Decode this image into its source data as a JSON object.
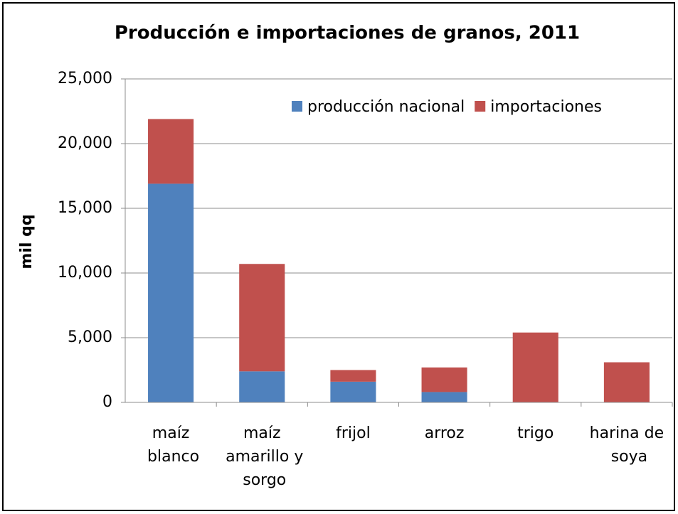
{
  "chart_data": {
    "type": "stacked_bar",
    "title": "Producción e importaciones de granos, 2011",
    "y_label": "mil qq",
    "categories": [
      "maíz blanco",
      "maíz amarillo y sorgo",
      "frijol",
      "arroz",
      "trigo",
      "harina de soya"
    ],
    "series": [
      {
        "name": "producción nacional",
        "color": "#4f81bd",
        "values": [
          16900,
          2400,
          1600,
          800,
          0,
          0
        ]
      },
      {
        "name": "importaciones",
        "color": "#c0504d",
        "values": [
          5000,
          8300,
          900,
          1900,
          5400,
          3100
        ]
      }
    ],
    "ylim": [
      0,
      25000
    ],
    "yticks": [
      0,
      {
        "value": 5000,
        "label": "5,000"
      },
      {
        "value": 10000,
        "label": "10,000"
      },
      {
        "value": 15000,
        "label": "15,000"
      },
      {
        "value": 20000,
        "label": "20,000"
      },
      {
        "value": 25000,
        "label": "25,000"
      }
    ],
    "grid": true,
    "legend": "top-right"
  }
}
